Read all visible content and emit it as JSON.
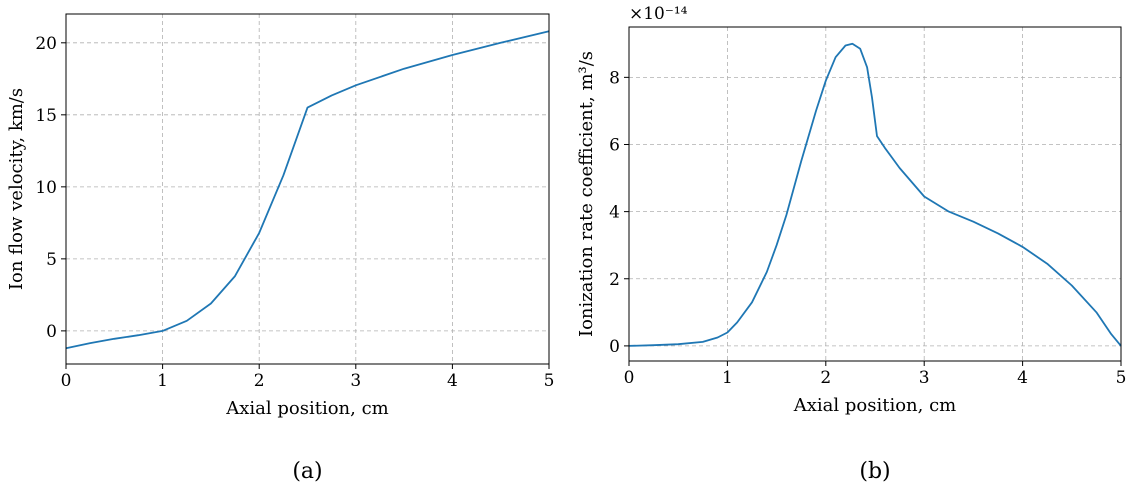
{
  "chart_data": [
    {
      "type": "line",
      "panel_label": "(a)",
      "xlabel": "Axial position, cm",
      "ylabel": "Ion flow velocity, km/s",
      "xlim": [
        0,
        5
      ],
      "ylim": [
        -2.3,
        22
      ],
      "xticks": [
        "0",
        "1",
        "2",
        "3",
        "4",
        "5"
      ],
      "yticks": [
        "0",
        "5",
        "10",
        "15",
        "20"
      ],
      "grid": true,
      "series": [
        {
          "color": "#1f77b4",
          "x": [
            0,
            0.25,
            0.5,
            0.75,
            1.0,
            1.25,
            1.5,
            1.75,
            2.0,
            2.25,
            2.5,
            2.75,
            3.0,
            3.5,
            4.0,
            4.5,
            5.0
          ],
          "y": [
            -1.2,
            -0.85,
            -0.55,
            -0.3,
            0.0,
            0.7,
            1.9,
            3.8,
            6.8,
            10.8,
            15.5,
            16.35,
            17.05,
            18.2,
            19.15,
            20.0,
            20.8
          ]
        }
      ]
    },
    {
      "type": "line",
      "panel_label": "(b)",
      "xlabel": "Axial position, cm",
      "ylabel": "Ionization rate coefficient, m³/s",
      "y_multiplier": "×10⁻¹⁴",
      "xlim": [
        0,
        5
      ],
      "ylim": [
        -0.45,
        9.5
      ],
      "xticks": [
        "0",
        "1",
        "2",
        "3",
        "4",
        "5"
      ],
      "yticks": [
        "0",
        "2",
        "4",
        "6",
        "8"
      ],
      "grid": true,
      "series": [
        {
          "color": "#1f77b4",
          "x": [
            0,
            0.25,
            0.5,
            0.75,
            0.9,
            1.0,
            1.1,
            1.25,
            1.4,
            1.5,
            1.6,
            1.75,
            1.9,
            2.0,
            2.1,
            2.2,
            2.27,
            2.35,
            2.42,
            2.47,
            2.52,
            2.6,
            2.75,
            3.0,
            3.25,
            3.5,
            3.75,
            4.0,
            4.25,
            4.5,
            4.75,
            4.9,
            5.0
          ],
          "y": [
            0.0,
            0.02,
            0.05,
            0.12,
            0.25,
            0.4,
            0.7,
            1.3,
            2.2,
            3.0,
            3.9,
            5.5,
            7.0,
            7.9,
            8.6,
            8.95,
            9.0,
            8.85,
            8.3,
            7.4,
            6.25,
            5.9,
            5.3,
            4.45,
            4.0,
            3.7,
            3.35,
            2.95,
            2.45,
            1.8,
            1.0,
            0.35,
            0.0
          ]
        }
      ]
    }
  ]
}
